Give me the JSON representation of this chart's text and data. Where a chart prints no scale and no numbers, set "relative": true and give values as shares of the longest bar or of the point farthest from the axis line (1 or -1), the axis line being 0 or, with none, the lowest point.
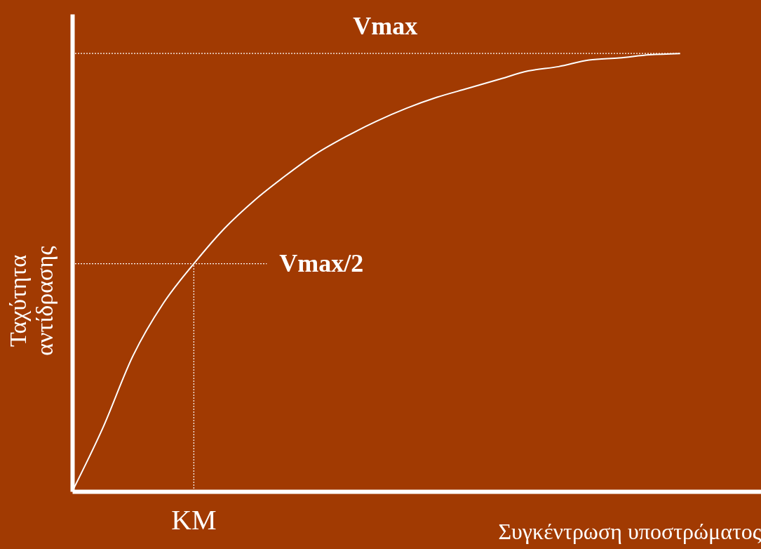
{
  "chart_data": {
    "type": "line",
    "relative": true,
    "xlabel": "Συγκέντρωση υποστρώματος",
    "ylabel": "Ταχύτητα αντίδρασης",
    "categories": [
      null,
      null,
      null,
      null,
      null,
      null,
      null,
      null,
      null,
      null,
      null,
      null,
      null,
      null,
      null,
      null,
      null,
      null,
      null,
      null,
      null
    ],
    "series": [
      {
        "color": "#ffffff",
        "values": [
          0,
          0.144,
          0.31,
          0.43,
          0.52,
          0.6,
          0.665,
          0.72,
          0.77,
          0.81,
          0.845,
          0.875,
          0.9,
          0.92,
          0.94,
          0.96,
          0.97,
          0.985,
          0.99,
          0.997,
          1
        ]
      }
    ],
    "ref_lines": [
      {
        "axis": "y",
        "value": 1,
        "label": "Vmax",
        "color": "#ffffff",
        "line_style": "dotted"
      },
      {
        "axis": "y",
        "value": 0.52,
        "label": "Vmax/2",
        "color": "#ffffff",
        "line_style": "dotted"
      }
    ],
    "annotations": [
      "KM"
    ],
    "grid": false,
    "tick_labels": false,
    "marker": "none",
    "line_style": "solid"
  }
}
